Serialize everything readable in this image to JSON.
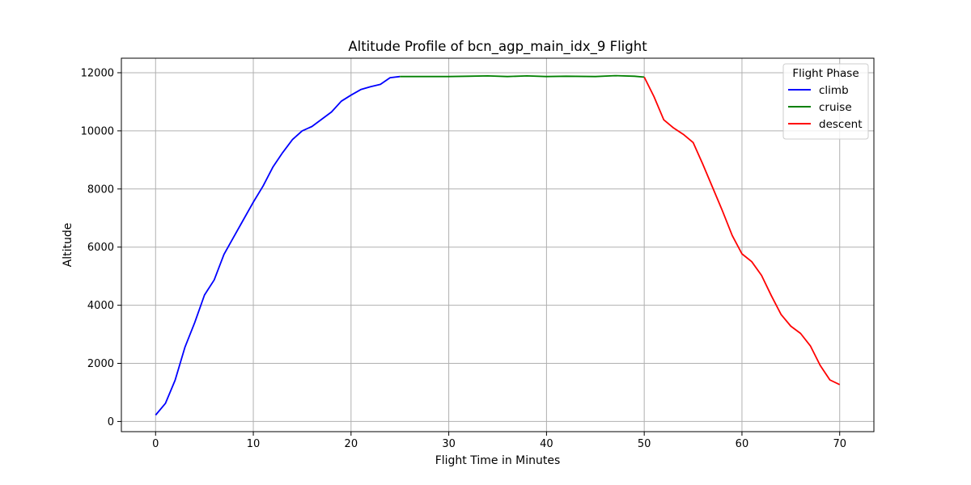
{
  "chart_data": {
    "type": "line",
    "title": "Altitude Profile of bcn_agp_main_idx_9 Flight",
    "xlabel": "Flight Time in Minutes",
    "ylabel": "Altitude",
    "xlim": [
      -3.5,
      73.5
    ],
    "ylim": [
      -350,
      12500
    ],
    "xticks": [
      0,
      10,
      20,
      30,
      40,
      50,
      60,
      70
    ],
    "yticks": [
      0,
      2000,
      4000,
      6000,
      8000,
      10000,
      12000
    ],
    "xtick_labels": [
      "0",
      "10",
      "20",
      "30",
      "40",
      "50",
      "60",
      "70"
    ],
    "ytick_labels": [
      "0",
      "2000",
      "4000",
      "6000",
      "8000",
      "10000",
      "12000"
    ],
    "grid": true,
    "legend": {
      "title": "Flight Phase",
      "position": "top-right"
    },
    "series": [
      {
        "name": "climb",
        "color": "#0000ff",
        "x": [
          0,
          1,
          2,
          3,
          4,
          5,
          6,
          7,
          8,
          9,
          10,
          11,
          12,
          13,
          14,
          15,
          16,
          17,
          18,
          19,
          20,
          21,
          22,
          23,
          24,
          25
        ],
        "y": [
          220,
          620,
          1420,
          2550,
          3400,
          4350,
          4870,
          5750,
          6350,
          6950,
          7550,
          8100,
          8750,
          9250,
          9700,
          10000,
          10150,
          10400,
          10650,
          11020,
          11230,
          11420,
          11520,
          11600,
          11830,
          11870
        ]
      },
      {
        "name": "cruise",
        "color": "#008000",
        "x": [
          25,
          27,
          30,
          32,
          34,
          36,
          38,
          40,
          42,
          45,
          47,
          49,
          50
        ],
        "y": [
          11870,
          11870,
          11870,
          11880,
          11890,
          11870,
          11890,
          11870,
          11880,
          11870,
          11900,
          11880,
          11850
        ]
      },
      {
        "name": "descent",
        "color": "#ff0000",
        "x": [
          50,
          51,
          52,
          53,
          54,
          55,
          56,
          57,
          58,
          59,
          60,
          61,
          62,
          63,
          64,
          65,
          66,
          67,
          68,
          69,
          70
        ],
        "y": [
          11850,
          11180,
          10380,
          10100,
          9880,
          9600,
          8850,
          8050,
          7250,
          6400,
          5770,
          5500,
          5030,
          4330,
          3680,
          3280,
          3030,
          2600,
          1930,
          1430,
          1270
        ]
      }
    ]
  }
}
